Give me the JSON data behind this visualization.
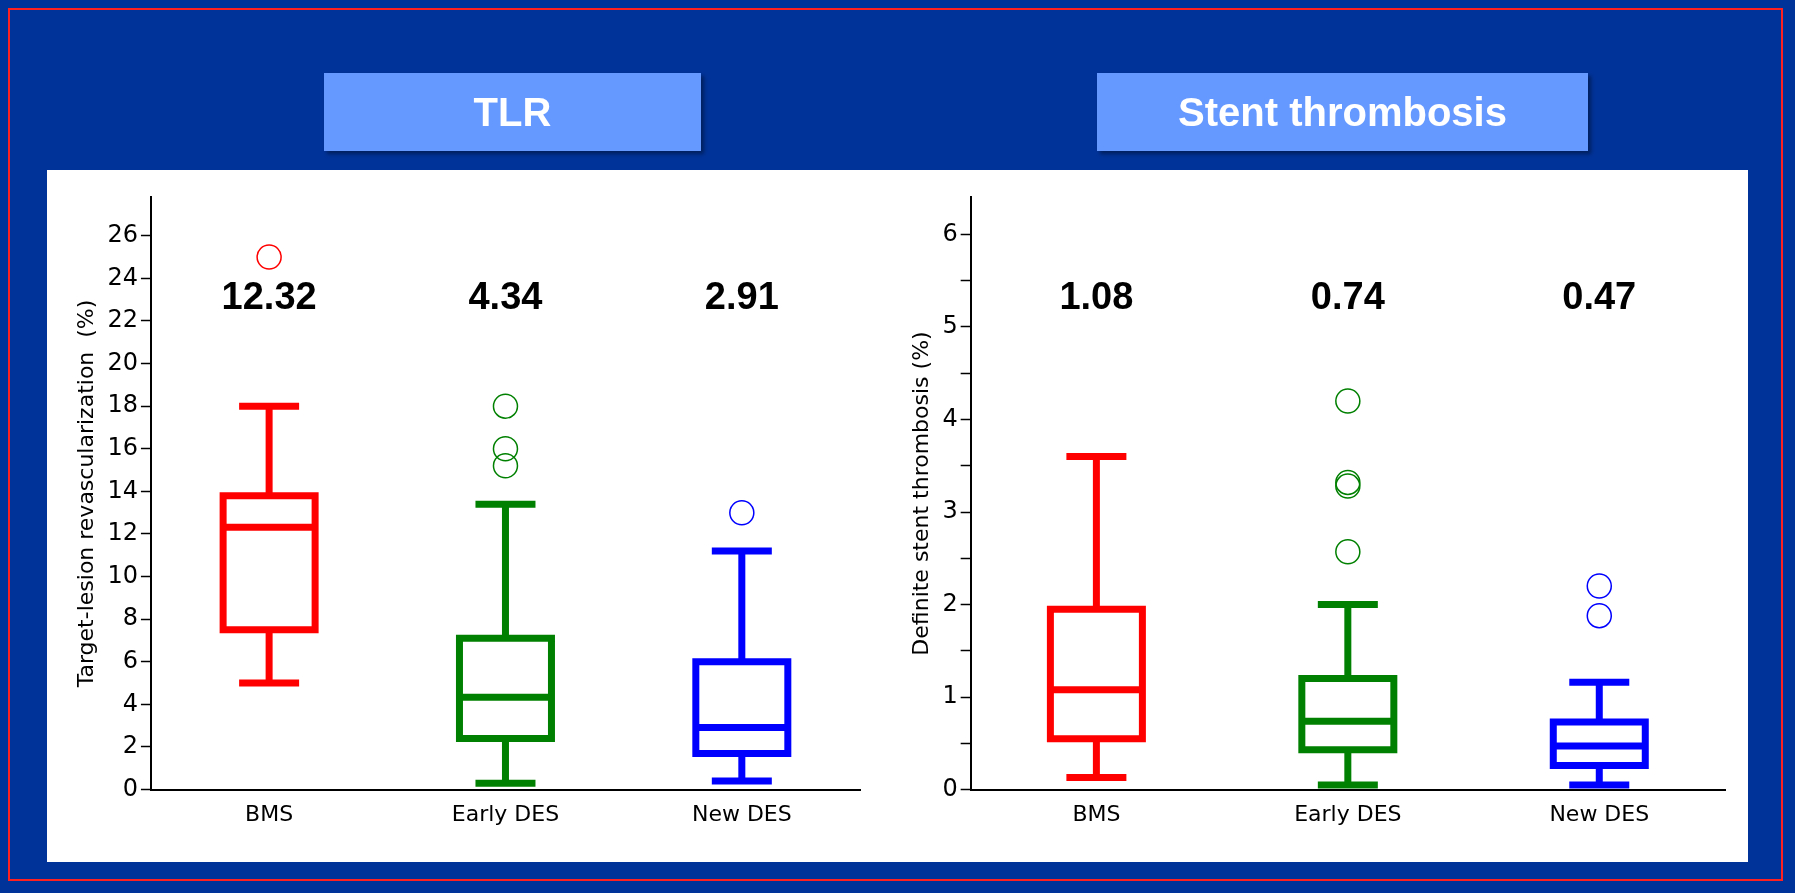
{
  "chart_data": [
    {
      "type": "box",
      "title": "TLR",
      "ylabel": "Target-lesion revascularization  (%)",
      "categories": [
        "BMS",
        "Early DES",
        "New DES"
      ],
      "colors": [
        "#ff0000",
        "#008000",
        "#0000ff"
      ],
      "boxes": [
        {
          "low": 5,
          "q1": 7.5,
          "median": 12.32,
          "q3": 13.8,
          "high": 18,
          "outliers": [
            25
          ]
        },
        {
          "low": 0.3,
          "q1": 2.4,
          "median": 4.34,
          "q3": 7.1,
          "high": 13.4,
          "outliers": [
            18,
            16,
            15.2
          ]
        },
        {
          "low": 0.4,
          "q1": 1.7,
          "median": 2.91,
          "q3": 6,
          "high": 11.2,
          "outliers": [
            13
          ]
        }
      ],
      "annotations": [
        "12.32",
        "4.34",
        "2.91"
      ],
      "ylim": [
        0,
        27.8
      ],
      "yticks": [
        0,
        2,
        4,
        6,
        8,
        10,
        12,
        14,
        16,
        18,
        20,
        22,
        24,
        26
      ],
      "grid": false,
      "legend": false
    },
    {
      "type": "box",
      "title": "Stent thrombosis",
      "ylabel": "Definite stent thrombosis (%)",
      "categories": [
        "BMS",
        "Early DES",
        "New DES"
      ],
      "colors": [
        "#ff0000",
        "#008000",
        "#0000ff"
      ],
      "boxes": [
        {
          "low": 0.13,
          "q1": 0.55,
          "median": 1.08,
          "q3": 1.95,
          "high": 3.6
        },
        {
          "low": 0.05,
          "q1": 0.43,
          "median": 0.74,
          "q3": 1.2,
          "high": 2.0,
          "outliers": [
            4.2,
            3.32,
            3.28,
            2.57
          ]
        },
        {
          "low": 0.05,
          "q1": 0.26,
          "median": 0.47,
          "q3": 0.73,
          "high": 1.16,
          "outliers": [
            2.2,
            1.88
          ]
        }
      ],
      "annotations": [
        "1.08",
        "0.74",
        "0.47"
      ],
      "ylim": [
        0,
        6.4
      ],
      "yticks": [
        0,
        {
          "value": 0.5,
          "label": null
        },
        1,
        {
          "value": 1.5,
          "label": null
        },
        2,
        {
          "value": 2.5,
          "label": null
        },
        3,
        {
          "value": 3.5,
          "label": null
        },
        4,
        {
          "value": 4.5,
          "label": null
        },
        5,
        {
          "value": 5.5,
          "label": null
        },
        6
      ],
      "grid": false,
      "legend": false
    }
  ]
}
